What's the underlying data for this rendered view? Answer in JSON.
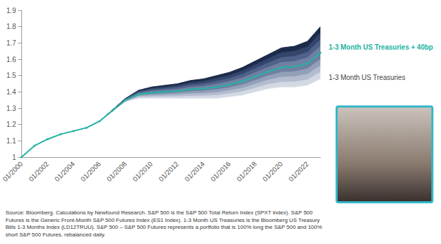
{
  "chart_data": {
    "type": "line",
    "caption": "Source: Bloomberg.  Calculations by Newfound Research.  S&P 500 is the S&P 500 Total Return Index (SPXT Index).  S&P 500 Futures is the Generic Front-Month S&P 500 Futures Index (ES1 Index).  1-3 Month US Treasuries is the Bloomberg US Treasury Bills 1-3 Months Index (LD12TRUU).  S&P 500 – S&P 500 Futures represents a portfolio that is 100% long the S&P 500 and 100% short S&P 500 Futures, rebalanced daily.",
    "categories": [
      "01/2000",
      null,
      "01/2002",
      null,
      "01/2004",
      null,
      "01/2006",
      null,
      "01/2008",
      null,
      "01/2010",
      null,
      "01/2012",
      null,
      "01/2014",
      null,
      "01/2016",
      null,
      "01/2018",
      null,
      "01/2020",
      null,
      "01/2022",
      null
    ],
    "ylim": [
      1,
      1.9
    ],
    "yticks": [
      1,
      1.1,
      1.2,
      1.3,
      1.4,
      1.5,
      1.6,
      1.7,
      1.8,
      1.9
    ],
    "grid": false,
    "series": [
      {
        "type": "area",
        "color": "#1c2b4a",
        "values": [
          1.0,
          1.07,
          1.11,
          1.14,
          1.16,
          1.18,
          1.22,
          1.29,
          1.36,
          1.41,
          1.43,
          1.44,
          1.45,
          1.47,
          1.48,
          1.5,
          1.52,
          1.55,
          1.59,
          1.63,
          1.67,
          1.68,
          1.71,
          1.8
        ]
      },
      {
        "type": "area",
        "color": "#33456b",
        "values": [
          1.0,
          1.07,
          1.11,
          1.14,
          1.16,
          1.18,
          1.22,
          1.29,
          1.36,
          1.404,
          1.421,
          1.43,
          1.439,
          1.456,
          1.465,
          1.483,
          1.501,
          1.529,
          1.566,
          1.604,
          1.64,
          1.649,
          1.676,
          1.76
        ]
      },
      {
        "type": "area",
        "color": "#51628a",
        "values": [
          1.0,
          1.07,
          1.11,
          1.14,
          1.16,
          1.18,
          1.22,
          1.29,
          1.355,
          1.398,
          1.413,
          1.42,
          1.428,
          1.443,
          1.45,
          1.465,
          1.483,
          1.508,
          1.543,
          1.578,
          1.61,
          1.618,
          1.643,
          1.72
        ]
      },
      {
        "type": "area",
        "color": "#7080a2",
        "values": [
          1.0,
          1.07,
          1.11,
          1.14,
          1.16,
          1.18,
          1.22,
          1.29,
          1.35,
          1.391,
          1.404,
          1.41,
          1.416,
          1.429,
          1.435,
          1.448,
          1.464,
          1.486,
          1.519,
          1.551,
          1.58,
          1.586,
          1.609,
          1.68
        ]
      },
      {
        "type": "area",
        "color": "#93a0b9",
        "values": [
          1.0,
          1.07,
          1.11,
          1.14,
          1.16,
          1.18,
          1.22,
          1.28,
          1.345,
          1.379,
          1.386,
          1.39,
          1.394,
          1.401,
          1.405,
          1.413,
          1.426,
          1.444,
          1.471,
          1.499,
          1.52,
          1.524,
          1.541,
          1.6
        ]
      },
      {
        "type": "area",
        "color": "#b3bdcf",
        "values": [
          1.0,
          1.07,
          1.11,
          1.14,
          1.16,
          1.18,
          1.22,
          1.28,
          1.34,
          1.373,
          1.378,
          1.38,
          1.383,
          1.388,
          1.39,
          1.395,
          1.408,
          1.423,
          1.448,
          1.473,
          1.49,
          1.493,
          1.508,
          1.56
        ]
      },
      {
        "type": "area",
        "color": "#d3d9e3",
        "values": [
          1.0,
          1.07,
          1.11,
          1.14,
          1.16,
          1.18,
          1.22,
          1.28,
          1.34,
          1.366,
          1.369,
          1.37,
          1.371,
          1.374,
          1.375,
          1.378,
          1.389,
          1.401,
          1.424,
          1.446,
          1.46,
          1.461,
          1.474,
          1.52
        ]
      },
      {
        "type": "area",
        "name": "1-3 Month US Treasuries",
        "color": "#e3e7ee",
        "values": [
          1.0,
          1.07,
          1.11,
          1.14,
          1.16,
          1.18,
          1.22,
          1.28,
          1.34,
          1.36,
          1.36,
          1.36,
          1.36,
          1.36,
          1.36,
          1.36,
          1.37,
          1.38,
          1.4,
          1.42,
          1.43,
          1.43,
          1.44,
          1.48
        ]
      },
      {
        "type": "line",
        "name": "1-3 Month US Treasuries + 40bp",
        "color": "#22b3a3",
        "marker": "circle",
        "values": [
          1.0,
          1.07,
          1.11,
          1.14,
          1.16,
          1.18,
          1.22,
          1.285,
          1.35,
          1.385,
          1.395,
          1.4,
          1.405,
          1.415,
          1.42,
          1.43,
          1.445,
          1.465,
          1.495,
          1.525,
          1.55,
          1.555,
          1.575,
          1.64
        ]
      }
    ]
  }
}
